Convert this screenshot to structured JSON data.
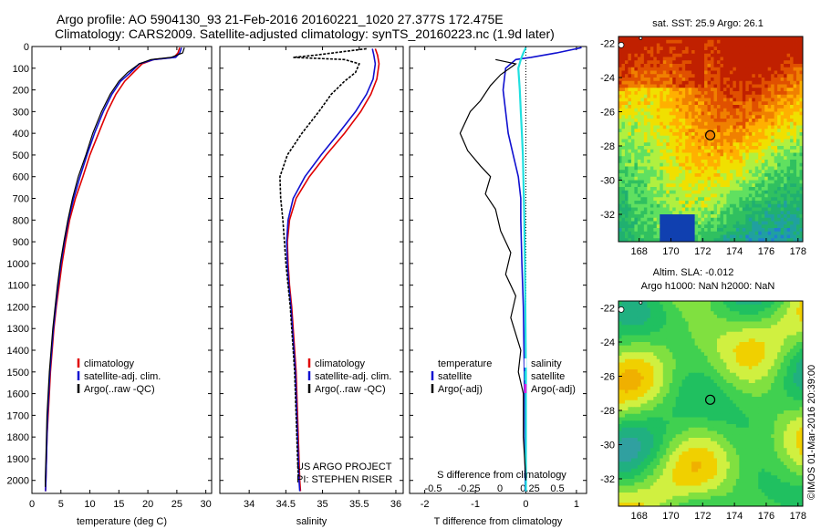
{
  "header": {
    "line1": "Argo profile: AO 5904130_93 21-Feb-2016 20160221_1020 27.377S 172.475E",
    "line2": "Climatology: CARS2009. Satellite-adjusted climatology: synTS_20160223.nc (1.9d later)"
  },
  "colors": {
    "climatology": "#e00000",
    "satellite": "#1010d0",
    "argo": "#000000",
    "sat_s": "#20e0e0",
    "argo_s_adj": "#e020e0"
  },
  "chart_data": [
    {
      "type": "line",
      "xlabel": "temperature (deg C)",
      "xlim": [
        0,
        31
      ],
      "xticks": [
        0,
        5,
        10,
        15,
        20,
        25,
        30
      ],
      "ylim": [
        0,
        2060
      ],
      "yticks": [
        0,
        100,
        200,
        300,
        400,
        500,
        600,
        700,
        800,
        900,
        1000,
        1100,
        1200,
        1300,
        1400,
        1500,
        1600,
        1700,
        1800,
        1900,
        2000
      ],
      "legend": [
        "climatology",
        "satellite-adj. clim.",
        "Argo(..raw -QC)"
      ],
      "series": [
        {
          "name": "climatology",
          "points": [
            [
              25.5,
              5
            ],
            [
              25.2,
              30
            ],
            [
              24.5,
              50
            ],
            [
              21,
              60
            ],
            [
              19,
              80
            ],
            [
              17.5,
              120
            ],
            [
              16,
              160
            ],
            [
              14.5,
              220
            ],
            [
              13,
              300
            ],
            [
              11.5,
              400
            ],
            [
              10,
              500
            ],
            [
              8.8,
              600
            ],
            [
              7.5,
              700
            ],
            [
              6.5,
              800
            ],
            [
              5.8,
              900
            ],
            [
              5.2,
              1000
            ],
            [
              4.7,
              1100
            ],
            [
              4.2,
              1200
            ],
            [
              3.8,
              1300
            ],
            [
              3.5,
              1400
            ],
            [
              3.2,
              1500
            ],
            [
              3,
              1600
            ],
            [
              2.8,
              1700
            ],
            [
              2.6,
              1800
            ],
            [
              2.5,
              1900
            ],
            [
              2.4,
              2000
            ],
            [
              2.35,
              2050
            ]
          ]
        },
        {
          "name": "satellite-adj. clim.",
          "points": [
            [
              25.8,
              5
            ],
            [
              25.5,
              30
            ],
            [
              24.8,
              50
            ],
            [
              21,
              60
            ],
            [
              18.5,
              80
            ],
            [
              17,
              120
            ],
            [
              15.3,
              160
            ],
            [
              13.8,
              220
            ],
            [
              12.3,
              300
            ],
            [
              10.8,
              400
            ],
            [
              9.5,
              500
            ],
            [
              8.3,
              600
            ],
            [
              7.2,
              700
            ],
            [
              6.3,
              800
            ],
            [
              5.6,
              900
            ],
            [
              5,
              1000
            ],
            [
              4.5,
              1100
            ],
            [
              4.1,
              1200
            ],
            [
              3.7,
              1300
            ],
            [
              3.4,
              1400
            ],
            [
              3.1,
              1500
            ],
            [
              2.9,
              1600
            ],
            [
              2.7,
              1700
            ],
            [
              2.6,
              1800
            ],
            [
              2.5,
              1900
            ],
            [
              2.4,
              2000
            ],
            [
              2.35,
              2050
            ]
          ]
        },
        {
          "name": "Argo(..raw -QC)",
          "points": [
            [
              26.3,
              5
            ],
            [
              26,
              30
            ],
            [
              24,
              50
            ],
            [
              20.5,
              60
            ],
            [
              18.5,
              80
            ],
            [
              16.5,
              120
            ],
            [
              15,
              160
            ],
            [
              13.5,
              220
            ],
            [
              12,
              300
            ],
            [
              10.5,
              400
            ],
            [
              9.3,
              500
            ],
            [
              8,
              600
            ],
            [
              7,
              700
            ],
            [
              6.2,
              800
            ],
            [
              5.5,
              900
            ],
            [
              4.9,
              1000
            ],
            [
              4.4,
              1100
            ],
            [
              4,
              1200
            ],
            [
              3.6,
              1300
            ],
            [
              3.3,
              1400
            ],
            [
              3,
              1500
            ],
            [
              2.8,
              1600
            ],
            [
              2.6,
              1700
            ],
            [
              2.5,
              1800
            ],
            [
              2.4,
              1900
            ],
            [
              2.3,
              2000
            ],
            [
              2.3,
              2030
            ]
          ]
        }
      ]
    },
    {
      "type": "line",
      "xlabel": "salinity",
      "xlim": [
        33.6,
        36.1
      ],
      "xticks": [
        34,
        34.5,
        35,
        35.5,
        36
      ],
      "ylim": [
        0,
        2060
      ],
      "legend": [
        "climatology",
        "satellite-adj. clim.",
        "Argo(..raw -QC)"
      ],
      "annotation": [
        "US ARGO PROJECT",
        "PI: STEPHEN RISER"
      ],
      "series": [
        {
          "name": "climatology",
          "points": [
            [
              35.72,
              10
            ],
            [
              35.75,
              40
            ],
            [
              35.77,
              80
            ],
            [
              35.74,
              150
            ],
            [
              35.66,
              220
            ],
            [
              35.52,
              300
            ],
            [
              35.3,
              400
            ],
            [
              35.05,
              500
            ],
            [
              34.82,
              600
            ],
            [
              34.64,
              700
            ],
            [
              34.55,
              800
            ],
            [
              34.52,
              900
            ],
            [
              34.53,
              1000
            ],
            [
              34.55,
              1100
            ],
            [
              34.58,
              1200
            ],
            [
              34.6,
              1300
            ],
            [
              34.62,
              1400
            ],
            [
              34.64,
              1500
            ],
            [
              34.65,
              1600
            ],
            [
              34.66,
              1700
            ],
            [
              34.67,
              1800
            ],
            [
              34.68,
              1900
            ],
            [
              34.69,
              2000
            ],
            [
              34.7,
              2050
            ]
          ]
        },
        {
          "name": "satellite-adj. clim.",
          "points": [
            [
              35.68,
              10
            ],
            [
              35.7,
              40
            ],
            [
              35.72,
              80
            ],
            [
              35.69,
              150
            ],
            [
              35.6,
              220
            ],
            [
              35.45,
              300
            ],
            [
              35.22,
              400
            ],
            [
              34.98,
              500
            ],
            [
              34.76,
              600
            ],
            [
              34.6,
              700
            ],
            [
              34.53,
              800
            ],
            [
              34.51,
              900
            ],
            [
              34.52,
              1000
            ],
            [
              34.54,
              1100
            ],
            [
              34.57,
              1200
            ],
            [
              34.59,
              1300
            ],
            [
              34.61,
              1400
            ],
            [
              34.63,
              1500
            ],
            [
              34.64,
              1600
            ],
            [
              34.65,
              1700
            ],
            [
              34.66,
              1800
            ],
            [
              34.67,
              1900
            ],
            [
              34.68,
              2000
            ],
            [
              34.69,
              2050
            ]
          ]
        },
        {
          "name": "Argo(..raw -QC)",
          "points": [
            [
              35.6,
              10
            ],
            [
              34.9,
              40
            ],
            [
              34.6,
              50
            ],
            [
              35.3,
              60
            ],
            [
              35.5,
              80
            ],
            [
              35.45,
              120
            ],
            [
              35.3,
              160
            ],
            [
              35.12,
              220
            ],
            [
              34.95,
              300
            ],
            [
              34.72,
              400
            ],
            [
              34.52,
              500
            ],
            [
              34.42,
              600
            ],
            [
              34.43,
              700
            ],
            [
              34.46,
              800
            ],
            [
              34.48,
              900
            ],
            [
              34.5,
              1000
            ],
            [
              34.53,
              1100
            ],
            [
              34.56,
              1200
            ],
            [
              34.58,
              1300
            ],
            [
              34.6,
              1400
            ],
            [
              34.62,
              1500
            ],
            [
              34.63,
              1600
            ],
            [
              34.64,
              1700
            ],
            [
              34.65,
              1800
            ],
            [
              34.66,
              1900
            ],
            [
              34.67,
              1980
            ]
          ]
        }
      ]
    },
    {
      "type": "line",
      "xlabel": "T difference from climatology",
      "xlabel_top": "S difference from climatology",
      "xlim": [
        -2.3,
        1.2
      ],
      "xticks": [
        -2,
        -1,
        0,
        1,
        2
      ],
      "xticks_s": [
        "-0.5",
        "-0.25",
        "0",
        "0.25",
        "0.5"
      ],
      "ylim": [
        0,
        2060
      ],
      "legend_t": [
        "temperature",
        "satellite",
        "Argo(-adj)"
      ],
      "legend_s": [
        "salinity",
        "satellite",
        "Argo(-adj)"
      ],
      "series": [
        {
          "name": "satellite",
          "points": [
            [
              1.1,
              5
            ],
            [
              0.6,
              30
            ],
            [
              0.1,
              50
            ],
            [
              -0.2,
              60
            ],
            [
              -0.4,
              100
            ],
            [
              -0.45,
              200
            ],
            [
              -0.4,
              300
            ],
            [
              -0.35,
              400
            ],
            [
              -0.25,
              500
            ],
            [
              -0.15,
              600
            ],
            [
              -0.1,
              700
            ],
            [
              -0.1,
              800
            ],
            [
              -0.08,
              1000
            ],
            [
              -0.05,
              1200
            ],
            [
              -0.03,
              1500
            ],
            [
              -0.02,
              1800
            ],
            [
              -0.01,
              2050
            ]
          ]
        },
        {
          "name": "satellite",
          "points": [
            [
              0,
              5
            ],
            [
              -0.05,
              30
            ],
            [
              -0.1,
              60
            ],
            [
              -0.15,
              100
            ],
            [
              -0.12,
              200
            ],
            [
              -0.1,
              300
            ],
            [
              -0.08,
              400
            ],
            [
              -0.06,
              500
            ],
            [
              -0.05,
              600
            ],
            [
              -0.04,
              700
            ],
            [
              -0.03,
              800
            ],
            [
              -0.02,
              1000
            ],
            [
              -0.01,
              1200
            ],
            [
              0,
              1500
            ],
            [
              0,
              1800
            ],
            [
              0,
              2050
            ]
          ]
        },
        {
          "name": "Argo(-adj)",
          "points": [
            [
              -0.6,
              60
            ],
            [
              -0.2,
              80
            ],
            [
              -0.5,
              130
            ],
            [
              -0.7,
              180
            ],
            [
              -0.9,
              250
            ],
            [
              -1.1,
              300
            ],
            [
              -1.3,
              400
            ],
            [
              -1.15,
              480
            ],
            [
              -0.9,
              550
            ],
            [
              -0.7,
              600
            ],
            [
              -0.8,
              680
            ],
            [
              -0.6,
              750
            ],
            [
              -0.5,
              850
            ],
            [
              -0.3,
              950
            ],
            [
              -0.4,
              1050
            ],
            [
              -0.2,
              1150
            ],
            [
              -0.3,
              1250
            ],
            [
              -0.1,
              1400
            ],
            [
              -0.15,
              1500
            ],
            [
              -0.05,
              1600
            ],
            [
              -0.05,
              1800
            ],
            [
              0,
              2000
            ]
          ]
        }
      ]
    },
    {
      "type": "heatmap",
      "title": "sat. SST: 25.9 Argo: 26.1",
      "xticks": [
        168,
        170,
        172,
        174,
        176,
        178
      ],
      "yticks": [
        -22,
        -24,
        -26,
        -28,
        -30,
        -32
      ],
      "xlim": [
        166.7,
        178.3
      ],
      "ylim": [
        -33.6,
        -21.6
      ],
      "marker": [
        172.475,
        -27.377
      ]
    },
    {
      "type": "heatmap",
      "title": "Altim. SLA: -0.012",
      "subtitle": "Argo h1000: NaN h2000: NaN",
      "xticks": [
        168,
        170,
        172,
        174,
        176,
        178
      ],
      "yticks": [
        -22,
        -24,
        -26,
        -28,
        -30,
        -32
      ],
      "xlim": [
        166.7,
        178.3
      ],
      "ylim": [
        -33.6,
        -21.6
      ],
      "marker": [
        172.475,
        -27.377
      ]
    }
  ],
  "side_label": "©IMOS 01-Mar-2016 20:39:00"
}
